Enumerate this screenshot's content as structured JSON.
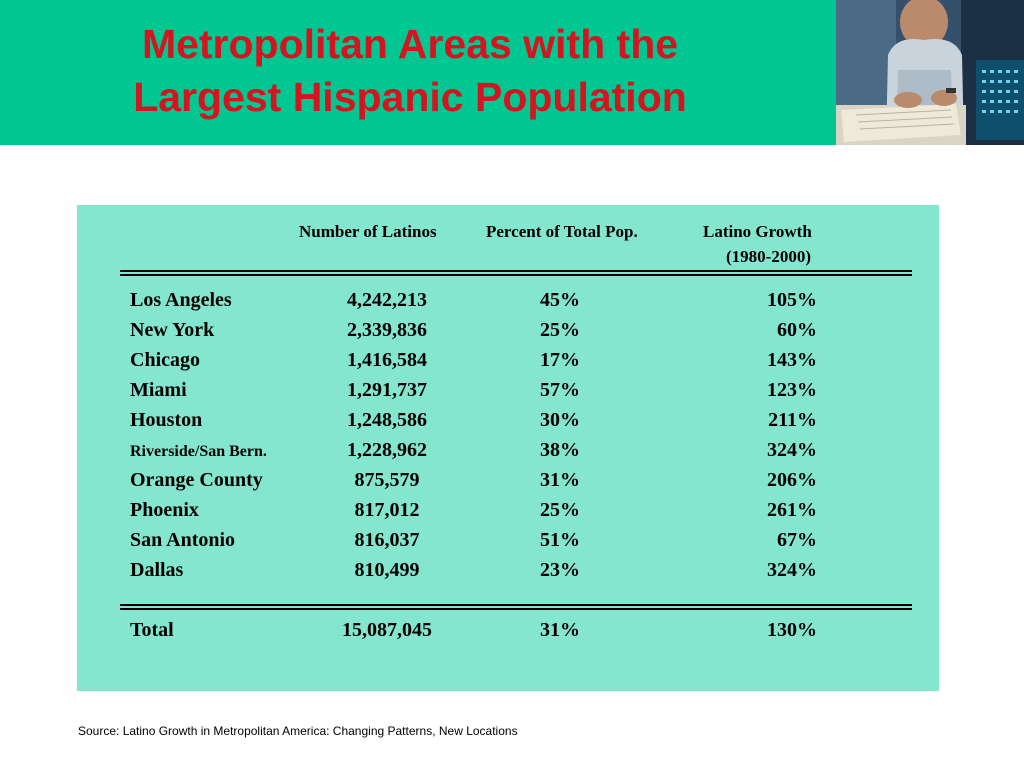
{
  "title": {
    "line1": "Metropolitan Areas with the",
    "line2": "Largest Hispanic Population"
  },
  "table": {
    "headers": {
      "number": "Number of Latinos",
      "percent": "Percent of Total Pop.",
      "growth_line1": "Latino Growth",
      "growth_line2": "(1980-2000)"
    },
    "rows": [
      {
        "city": "Los Angeles",
        "number": "4,242,213",
        "percent": "45%",
        "growth": "105%"
      },
      {
        "city": "New York",
        "number": "2,339,836",
        "percent": "25%",
        "growth": "60%"
      },
      {
        "city": "Chicago",
        "number": "1,416,584",
        "percent": "17%",
        "growth": "143%"
      },
      {
        "city": "Miami",
        "number": "1,291,737",
        "percent": "57%",
        "growth": "123%"
      },
      {
        "city": "Houston",
        "number": "1,248,586",
        "percent": "30%",
        "growth": "211%"
      },
      {
        "city": "Riverside/San Bern.",
        "number": "1,228,962",
        "percent": "38%",
        "growth": "324%"
      },
      {
        "city": "Orange County",
        "number": "875,579",
        "percent": "31%",
        "growth": "206%"
      },
      {
        "city": "Phoenix",
        "number": "817,012",
        "percent": "25%",
        "growth": "261%"
      },
      {
        "city": "San Antonio",
        "number": "816,037",
        "percent": "51%",
        "growth": "67%"
      },
      {
        "city": "Dallas",
        "number": "810,499",
        "percent": "23%",
        "growth": "324%"
      }
    ],
    "total": {
      "city": "Total",
      "number": "15,087,045",
      "percent": "31%",
      "growth": "130%"
    }
  },
  "source": "Source: Latino Growth in Metropolitan America:  Changing Patterns, New Locations",
  "colors": {
    "header_band": "#00c691",
    "title_text": "#d4151f",
    "table_background": "#84e6ce"
  }
}
